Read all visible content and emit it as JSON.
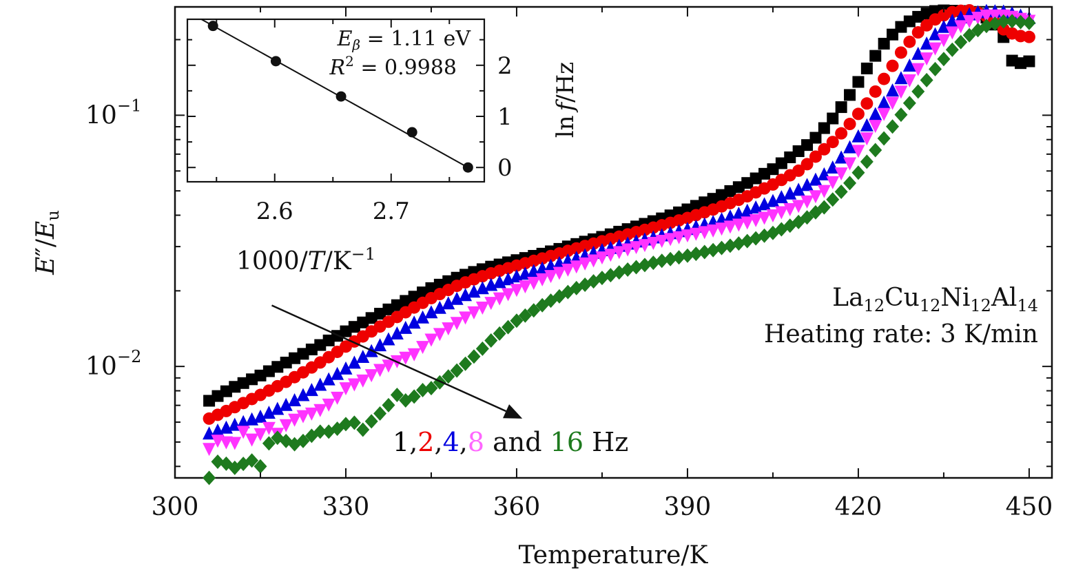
{
  "colors": {
    "s1": "#000000",
    "s2": "#ee0000",
    "s4": "#0000e0",
    "s8": "#ff33ff",
    "s16": "#1e7a1e",
    "legend8": "#ff66ff",
    "text": "#111111"
  },
  "labels": {
    "xlabel": "Temperature/K",
    "ylabel_E": "E",
    "ylabel_prime": "″",
    "ylabel_slash": "/",
    "ylabel_sub": "u",
    "sample_main": [
      "La",
      "Cu",
      "Ni",
      "Al"
    ],
    "sample_subs": [
      "12",
      "12",
      "12",
      "14"
    ],
    "heating": "Heating rate: 3 K/min",
    "legend_parts": [
      "1",
      ",",
      "2",
      ",",
      "4",
      ",",
      "8",
      " and ",
      "16",
      " Hz"
    ],
    "inset_xlabel_pre": "1000/",
    "inset_xlabel_T": "T",
    "inset_xlabel_post": "/K",
    "inset_xlabel_exp": "−1",
    "inset_ylabel_ln": "ln",
    "inset_ylabel_f": "f",
    "inset_ylabel_post": "/Hz",
    "ann_E": "E",
    "ann_beta": "β",
    "ann_E_val": " = 1.11 eV",
    "ann_R": "R",
    "ann_R_exp": "2",
    "ann_R_val": " = 0.9988"
  },
  "chart_data": [
    {
      "type": "scatter",
      "title": "",
      "xlabel": "Temperature/K",
      "ylabel": "E″/Eu",
      "yscale": "log",
      "xlim": [
        300,
        454
      ],
      "ylim": [
        0.0036,
        0.27
      ],
      "xticks": [
        300,
        330,
        360,
        390,
        420,
        450
      ],
      "yticks": [
        {
          "value": 0.1,
          "label": "10",
          "exp": "−1"
        },
        {
          "value": 0.01,
          "label": "10",
          "exp": "−2"
        }
      ],
      "x_start": 306,
      "x_step": 1.5,
      "series": [
        {
          "name": "1 Hz",
          "marker": "square",
          "color": "#000000",
          "points": [
            [
              306,
              0.0073
            ],
            [
              310,
              0.0082
            ],
            [
              315,
              0.0092
            ],
            [
              320,
              0.0105
            ],
            [
              325,
              0.012
            ],
            [
              330,
              0.0138
            ],
            [
              335,
              0.0158
            ],
            [
              340,
              0.018
            ],
            [
              345,
              0.0205
            ],
            [
              350,
              0.0228
            ],
            [
              355,
              0.0248
            ],
            [
              360,
              0.0265
            ],
            [
              365,
              0.0283
            ],
            [
              370,
              0.0305
            ],
            [
              375,
              0.0328
            ],
            [
              380,
              0.0355
            ],
            [
              385,
              0.0385
            ],
            [
              390,
              0.0422
            ],
            [
              395,
              0.047
            ],
            [
              400,
              0.053
            ],
            [
              405,
              0.061
            ],
            [
              408,
              0.068
            ],
            [
              412,
              0.079
            ],
            [
              416,
              0.1
            ],
            [
              419,
              0.125
            ],
            [
              422,
              0.16
            ],
            [
              425,
              0.2
            ],
            [
              428,
              0.23
            ],
            [
              431,
              0.25
            ],
            [
              434,
              0.262
            ],
            [
              438,
              0.26
            ],
            [
              442,
              0.25
            ],
            [
              445,
              0.22
            ],
            [
              447,
              0.165
            ],
            [
              449,
              0.16
            ],
            [
              451,
              0.168
            ]
          ]
        },
        {
          "name": "2 Hz",
          "marker": "circle",
          "color": "#ee0000",
          "points": [
            [
              306,
              0.0062
            ],
            [
              310,
              0.0068
            ],
            [
              315,
              0.0077
            ],
            [
              320,
              0.0088
            ],
            [
              325,
              0.0102
            ],
            [
              330,
              0.012
            ],
            [
              335,
              0.014
            ],
            [
              340,
              0.0162
            ],
            [
              345,
              0.0187
            ],
            [
              350,
              0.0212
            ],
            [
              355,
              0.0233
            ],
            [
              360,
              0.0252
            ],
            [
              365,
              0.0271
            ],
            [
              370,
              0.0293
            ],
            [
              375,
              0.0315
            ],
            [
              380,
              0.0338
            ],
            [
              385,
              0.0362
            ],
            [
              390,
              0.039
            ],
            [
              395,
              0.0425
            ],
            [
              400,
              0.047
            ],
            [
              405,
              0.053
            ],
            [
              410,
              0.061
            ],
            [
              413,
              0.07
            ],
            [
              416,
              0.08
            ],
            [
              419,
              0.095
            ],
            [
              422,
              0.115
            ],
            [
              425,
              0.145
            ],
            [
              428,
              0.185
            ],
            [
              431,
              0.22
            ],
            [
              434,
              0.245
            ],
            [
              437,
              0.26
            ],
            [
              440,
              0.262
            ],
            [
              443,
              0.245
            ],
            [
              446,
              0.215
            ],
            [
              449,
              0.205
            ],
            [
              451,
              0.205
            ]
          ]
        },
        {
          "name": "4 Hz",
          "marker": "triangle-up",
          "color": "#0000e0",
          "points": [
            [
              306,
              0.0054
            ],
            [
              310,
              0.0058
            ],
            [
              315,
              0.0063
            ],
            [
              320,
              0.0071
            ],
            [
              325,
              0.0083
            ],
            [
              330,
              0.0098
            ],
            [
              335,
              0.0117
            ],
            [
              340,
              0.014
            ],
            [
              345,
              0.0164
            ],
            [
              350,
              0.0188
            ],
            [
              355,
              0.0209
            ],
            [
              360,
              0.0228
            ],
            [
              365,
              0.0247
            ],
            [
              370,
              0.0268
            ],
            [
              375,
              0.029
            ],
            [
              380,
              0.031
            ],
            [
              385,
              0.033
            ],
            [
              390,
              0.0352
            ],
            [
              395,
              0.0378
            ],
            [
              400,
              0.0412
            ],
            [
              405,
              0.0455
            ],
            [
              410,
              0.051
            ],
            [
              415,
              0.06
            ],
            [
              418,
              0.072
            ],
            [
              421,
              0.088
            ],
            [
              424,
              0.108
            ],
            [
              427,
              0.135
            ],
            [
              430,
              0.17
            ],
            [
              433,
              0.205
            ],
            [
              436,
              0.235
            ],
            [
              439,
              0.25
            ],
            [
              442,
              0.26
            ],
            [
              446,
              0.258
            ],
            [
              451,
              0.24
            ]
          ]
        },
        {
          "name": "8 Hz",
          "marker": "triangle-down",
          "color": "#ff33ff",
          "points": [
            [
              306,
              0.0047
            ],
            [
              308,
              0.0052
            ],
            [
              310,
              0.0048
            ],
            [
              312,
              0.0055
            ],
            [
              314,
              0.005
            ],
            [
              316,
              0.0058
            ],
            [
              318,
              0.0054
            ],
            [
              320,
              0.006
            ],
            [
              322,
              0.0063
            ],
            [
              325,
              0.0066
            ],
            [
              328,
              0.0073
            ],
            [
              330,
              0.0082
            ],
            [
              333,
              0.0088
            ],
            [
              336,
              0.0097
            ],
            [
              339,
              0.0105
            ],
            [
              342,
              0.0112
            ],
            [
              345,
              0.0128
            ],
            [
              348,
              0.0142
            ],
            [
              352,
              0.0162
            ],
            [
              356,
              0.0182
            ],
            [
              360,
              0.0202
            ],
            [
              365,
              0.0225
            ],
            [
              370,
              0.0248
            ],
            [
              375,
              0.0272
            ],
            [
              380,
              0.0295
            ],
            [
              385,
              0.0315
            ],
            [
              390,
              0.0333
            ],
            [
              395,
              0.035
            ],
            [
              400,
              0.0372
            ],
            [
              405,
              0.04
            ],
            [
              410,
              0.044
            ],
            [
              414,
              0.05
            ],
            [
              418,
              0.062
            ],
            [
              421,
              0.078
            ],
            [
              424,
              0.098
            ],
            [
              427,
              0.12
            ],
            [
              430,
              0.148
            ],
            [
              433,
              0.18
            ],
            [
              436,
              0.21
            ],
            [
              439,
              0.235
            ],
            [
              442,
              0.25
            ],
            [
              446,
              0.25
            ],
            [
              451,
              0.235
            ]
          ]
        },
        {
          "name": "16 Hz",
          "marker": "diamond",
          "color": "#1e7a1e",
          "points": [
            [
              306,
              0.0036
            ],
            [
              307,
              0.0042
            ],
            [
              309,
              0.0041
            ],
            [
              311,
              0.0039
            ],
            [
              313,
              0.0043
            ],
            [
              315,
              0.004
            ],
            [
              317,
              0.0053
            ],
            [
              319,
              0.0051
            ],
            [
              321,
              0.0049
            ],
            [
              323,
              0.0051
            ],
            [
              325,
              0.0055
            ],
            [
              327,
              0.0055
            ],
            [
              329,
              0.0057
            ],
            [
              331,
              0.0061
            ],
            [
              333,
              0.0056
            ],
            [
              335,
              0.0062
            ],
            [
              337,
              0.0068
            ],
            [
              339,
              0.0077
            ],
            [
              341,
              0.0072
            ],
            [
              343,
              0.008
            ],
            [
              345,
              0.0082
            ],
            [
              347,
              0.0088
            ],
            [
              350,
              0.0098
            ],
            [
              353,
              0.0112
            ],
            [
              356,
              0.013
            ],
            [
              360,
              0.0152
            ],
            [
              365,
              0.0178
            ],
            [
              370,
              0.0203
            ],
            [
              375,
              0.0225
            ],
            [
              380,
              0.0245
            ],
            [
              385,
              0.0262
            ],
            [
              390,
              0.0276
            ],
            [
              395,
              0.0292
            ],
            [
              400,
              0.0313
            ],
            [
              405,
              0.034
            ],
            [
              410,
              0.038
            ],
            [
              414,
              0.043
            ],
            [
              418,
              0.052
            ],
            [
              421,
              0.063
            ],
            [
              424,
              0.078
            ],
            [
              427,
              0.097
            ],
            [
              430,
              0.12
            ],
            [
              433,
              0.148
            ],
            [
              436,
              0.178
            ],
            [
              439,
              0.205
            ],
            [
              442,
              0.225
            ],
            [
              446,
              0.238
            ],
            [
              451,
              0.232
            ]
          ]
        }
      ],
      "annotation_arrow": {
        "from": [
          317,
          0.0175
        ],
        "to": [
          361,
          0.0062
        ]
      }
    },
    {
      "type": "scatter",
      "name": "inset",
      "xlabel": "1000/T/K−1",
      "ylabel": "ln f/Hz",
      "xlim": [
        2.525,
        2.78
      ],
      "ylim": [
        -0.28,
        2.9
      ],
      "xticks": [
        2.6,
        2.7
      ],
      "yticks": [
        0,
        1,
        2
      ],
      "x": [
        2.547,
        2.601,
        2.657,
        2.718,
        2.766
      ],
      "y": [
        2.77,
        2.08,
        1.39,
        0.69,
        0.0
      ],
      "fit": {
        "type": "linear",
        "from": [
          2.537,
          2.9
        ],
        "to": [
          2.766,
          0.0
        ]
      },
      "annotations": [
        "E_β = 1.11 eV",
        "R² = 0.9988"
      ]
    }
  ]
}
